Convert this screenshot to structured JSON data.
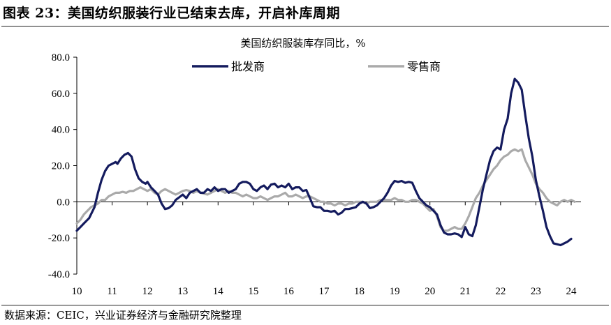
{
  "figure": {
    "title": "图表 23：美国纺织服装行业已结束去库，开启补库周期",
    "source": "数据来源：CEIC，兴业证券经济与金融研究院整理"
  },
  "chart_data": {
    "type": "line",
    "title": "美国纺织服装库存同比，%",
    "xlabel": "",
    "ylabel": "",
    "xlim": [
      10,
      24.3
    ],
    "ylim": [
      -40,
      80
    ],
    "x_ticks": [
      "10",
      "11",
      "12",
      "13",
      "14",
      "15",
      "16",
      "17",
      "18",
      "19",
      "20",
      "21",
      "22",
      "23",
      "24"
    ],
    "y_ticks": [
      "80.0",
      "60.0",
      "40.0",
      "20.0",
      "0.0",
      "-20.0",
      "-40.0"
    ],
    "grid": false,
    "legend_position": "top",
    "series": [
      {
        "name": "批发商",
        "color": "#141b5e",
        "points": [
          [
            10.0,
            -16
          ],
          [
            10.1,
            -14
          ],
          [
            10.2,
            -12
          ],
          [
            10.35,
            -9
          ],
          [
            10.5,
            -3
          ],
          [
            10.6,
            5
          ],
          [
            10.7,
            12
          ],
          [
            10.8,
            17
          ],
          [
            10.9,
            20
          ],
          [
            11.0,
            21
          ],
          [
            11.1,
            22
          ],
          [
            11.15,
            21
          ],
          [
            11.25,
            24
          ],
          [
            11.35,
            26
          ],
          [
            11.45,
            27
          ],
          [
            11.55,
            25
          ],
          [
            11.65,
            18
          ],
          [
            11.75,
            13
          ],
          [
            11.85,
            11
          ],
          [
            11.95,
            10
          ],
          [
            12.0,
            11
          ],
          [
            12.1,
            8
          ],
          [
            12.2,
            6
          ],
          [
            12.3,
            4
          ],
          [
            12.4,
            -1
          ],
          [
            12.5,
            -4
          ],
          [
            12.6,
            -3.5
          ],
          [
            12.7,
            -2
          ],
          [
            12.8,
            1
          ],
          [
            12.9,
            2.5
          ],
          [
            13.0,
            4
          ],
          [
            13.1,
            2
          ],
          [
            13.2,
            5
          ],
          [
            13.3,
            6
          ],
          [
            13.4,
            7
          ],
          [
            13.5,
            5
          ],
          [
            13.6,
            5
          ],
          [
            13.7,
            7
          ],
          [
            13.8,
            6
          ],
          [
            13.9,
            8
          ],
          [
            14.0,
            6
          ],
          [
            14.1,
            7
          ],
          [
            14.2,
            7
          ],
          [
            14.3,
            5
          ],
          [
            14.4,
            6
          ],
          [
            14.5,
            7
          ],
          [
            14.6,
            10
          ],
          [
            14.7,
            11
          ],
          [
            14.8,
            11
          ],
          [
            14.9,
            10
          ],
          [
            15.0,
            7
          ],
          [
            15.1,
            6
          ],
          [
            15.2,
            8
          ],
          [
            15.3,
            9
          ],
          [
            15.4,
            7
          ],
          [
            15.5,
            9.5
          ],
          [
            15.6,
            10
          ],
          [
            15.7,
            8
          ],
          [
            15.8,
            9
          ],
          [
            15.9,
            8
          ],
          [
            16.0,
            10
          ],
          [
            16.1,
            7
          ],
          [
            16.2,
            8
          ],
          [
            16.3,
            8
          ],
          [
            16.4,
            6
          ],
          [
            16.5,
            6.5
          ],
          [
            16.6,
            2
          ],
          [
            16.7,
            -2.5
          ],
          [
            16.8,
            -3
          ],
          [
            16.9,
            -3
          ],
          [
            17.0,
            -5
          ],
          [
            17.1,
            -5
          ],
          [
            17.2,
            -5.5
          ],
          [
            17.3,
            -5
          ],
          [
            17.4,
            -7
          ],
          [
            17.5,
            -6
          ],
          [
            17.6,
            -4
          ],
          [
            17.7,
            -4
          ],
          [
            17.8,
            -3.5
          ],
          [
            17.9,
            -3
          ],
          [
            18.0,
            -1
          ],
          [
            18.1,
            0
          ],
          [
            18.2,
            -1
          ],
          [
            18.3,
            -3.5
          ],
          [
            18.4,
            -3
          ],
          [
            18.5,
            -2
          ],
          [
            18.6,
            0
          ],
          [
            18.7,
            2
          ],
          [
            18.8,
            5
          ],
          [
            18.9,
            9
          ],
          [
            19.0,
            11.5
          ],
          [
            19.1,
            11
          ],
          [
            19.2,
            11.5
          ],
          [
            19.3,
            10.5
          ],
          [
            19.4,
            11
          ],
          [
            19.5,
            10.5
          ],
          [
            19.6,
            6
          ],
          [
            19.7,
            2
          ],
          [
            19.8,
            0
          ],
          [
            19.9,
            -2
          ],
          [
            20.0,
            -3
          ],
          [
            20.1,
            -5
          ],
          [
            20.2,
            -7
          ],
          [
            20.3,
            -13
          ],
          [
            20.4,
            -17
          ],
          [
            20.5,
            -18
          ],
          [
            20.6,
            -18
          ],
          [
            20.7,
            -17.5
          ],
          [
            20.8,
            -18
          ],
          [
            20.9,
            -19.5
          ],
          [
            21.0,
            -14
          ],
          [
            21.1,
            -18
          ],
          [
            21.2,
            -19
          ],
          [
            21.3,
            -13
          ],
          [
            21.4,
            -3
          ],
          [
            21.5,
            7
          ],
          [
            21.6,
            15
          ],
          [
            21.7,
            23
          ],
          [
            21.8,
            28
          ],
          [
            21.9,
            30
          ],
          [
            22.0,
            29
          ],
          [
            22.1,
            40
          ],
          [
            22.2,
            46
          ],
          [
            22.3,
            60
          ],
          [
            22.4,
            68
          ],
          [
            22.5,
            66
          ],
          [
            22.6,
            62
          ],
          [
            22.7,
            48
          ],
          [
            22.8,
            35
          ],
          [
            22.9,
            25
          ],
          [
            23.0,
            12
          ],
          [
            23.1,
            3
          ],
          [
            23.2,
            -5
          ],
          [
            23.3,
            -14
          ],
          [
            23.4,
            -19
          ],
          [
            23.5,
            -23
          ],
          [
            23.6,
            -23.5
          ],
          [
            23.7,
            -24
          ],
          [
            23.8,
            -23
          ],
          [
            23.9,
            -22
          ],
          [
            24.0,
            -20.5
          ]
        ]
      },
      {
        "name": "零售商",
        "color": "#aaaaaa",
        "points": [
          [
            10.0,
            -12
          ],
          [
            10.1,
            -10
          ],
          [
            10.2,
            -7
          ],
          [
            10.3,
            -5
          ],
          [
            10.4,
            -3
          ],
          [
            10.5,
            -2
          ],
          [
            10.6,
            -1
          ],
          [
            10.7,
            1
          ],
          [
            10.8,
            1
          ],
          [
            10.9,
            3
          ],
          [
            11.0,
            4
          ],
          [
            11.1,
            5
          ],
          [
            11.2,
            5
          ],
          [
            11.3,
            5.5
          ],
          [
            11.4,
            5
          ],
          [
            11.5,
            6
          ],
          [
            11.6,
            6
          ],
          [
            11.7,
            7
          ],
          [
            11.8,
            8
          ],
          [
            11.9,
            7
          ],
          [
            12.0,
            6
          ],
          [
            12.1,
            7
          ],
          [
            12.2,
            5
          ],
          [
            12.3,
            4
          ],
          [
            12.4,
            6
          ],
          [
            12.5,
            7
          ],
          [
            12.6,
            6
          ],
          [
            12.7,
            5
          ],
          [
            12.8,
            4
          ],
          [
            12.9,
            5
          ],
          [
            13.0,
            6
          ],
          [
            13.1,
            6.5
          ],
          [
            13.2,
            6
          ],
          [
            13.3,
            5
          ],
          [
            13.4,
            6
          ],
          [
            13.5,
            5
          ],
          [
            13.6,
            4.5
          ],
          [
            13.7,
            4
          ],
          [
            13.8,
            5
          ],
          [
            13.9,
            6
          ],
          [
            14.0,
            7
          ],
          [
            14.1,
            6
          ],
          [
            14.2,
            5
          ],
          [
            14.3,
            6
          ],
          [
            14.4,
            5
          ],
          [
            14.5,
            5
          ],
          [
            14.6,
            4
          ],
          [
            14.7,
            3
          ],
          [
            14.8,
            4
          ],
          [
            14.9,
            3
          ],
          [
            15.0,
            2
          ],
          [
            15.1,
            2
          ],
          [
            15.2,
            3
          ],
          [
            15.3,
            2
          ],
          [
            15.4,
            1
          ],
          [
            15.5,
            2
          ],
          [
            15.6,
            3
          ],
          [
            15.7,
            3
          ],
          [
            15.8,
            4
          ],
          [
            15.9,
            5
          ],
          [
            16.0,
            3
          ],
          [
            16.1,
            3
          ],
          [
            16.2,
            4
          ],
          [
            16.3,
            3
          ],
          [
            16.4,
            2
          ],
          [
            16.5,
            3
          ],
          [
            16.6,
            3
          ],
          [
            16.7,
            2
          ],
          [
            16.8,
            1
          ],
          [
            16.9,
            0
          ],
          [
            17.0,
            0
          ],
          [
            17.1,
            -1
          ],
          [
            17.2,
            -1
          ],
          [
            17.3,
            -2
          ],
          [
            17.4,
            -1
          ],
          [
            17.5,
            -1
          ],
          [
            17.6,
            -2
          ],
          [
            17.7,
            -1
          ],
          [
            17.8,
            -1
          ],
          [
            17.9,
            0
          ],
          [
            18.0,
            0
          ],
          [
            18.1,
            0
          ],
          [
            18.2,
            -1
          ],
          [
            18.3,
            0
          ],
          [
            18.4,
            0
          ],
          [
            18.5,
            0
          ],
          [
            18.6,
            1
          ],
          [
            18.7,
            1
          ],
          [
            18.8,
            1
          ],
          [
            18.9,
            1
          ],
          [
            19.0,
            2
          ],
          [
            19.1,
            1
          ],
          [
            19.2,
            1
          ],
          [
            19.3,
            0
          ],
          [
            19.4,
            0
          ],
          [
            19.5,
            1
          ],
          [
            19.6,
            1
          ],
          [
            19.7,
            0
          ],
          [
            19.8,
            -1
          ],
          [
            19.9,
            -3
          ],
          [
            20.0,
            -5
          ],
          [
            20.1,
            -4
          ],
          [
            20.2,
            -8
          ],
          [
            20.3,
            -14
          ],
          [
            20.4,
            -16
          ],
          [
            20.5,
            -16
          ],
          [
            20.6,
            -15
          ],
          [
            20.7,
            -14
          ],
          [
            20.8,
            -15
          ],
          [
            20.9,
            -15
          ],
          [
            21.0,
            -12
          ],
          [
            21.1,
            -8
          ],
          [
            21.2,
            -3
          ],
          [
            21.3,
            2
          ],
          [
            21.4,
            5
          ],
          [
            21.5,
            9
          ],
          [
            21.6,
            12
          ],
          [
            21.7,
            15
          ],
          [
            21.8,
            18
          ],
          [
            21.9,
            20
          ],
          [
            22.0,
            23
          ],
          [
            22.1,
            25
          ],
          [
            22.2,
            26
          ],
          [
            22.3,
            28
          ],
          [
            22.4,
            29
          ],
          [
            22.5,
            28
          ],
          [
            22.6,
            29
          ],
          [
            22.7,
            23
          ],
          [
            22.8,
            19
          ],
          [
            22.9,
            15
          ],
          [
            23.0,
            10
          ],
          [
            23.1,
            7
          ],
          [
            23.2,
            5
          ],
          [
            23.3,
            2
          ],
          [
            23.4,
            0
          ],
          [
            23.5,
            -1
          ],
          [
            23.6,
            -2
          ],
          [
            23.7,
            0
          ],
          [
            23.8,
            1
          ],
          [
            23.9,
            0
          ],
          [
            24.0,
            1
          ],
          [
            24.1,
            0
          ]
        ]
      }
    ]
  }
}
